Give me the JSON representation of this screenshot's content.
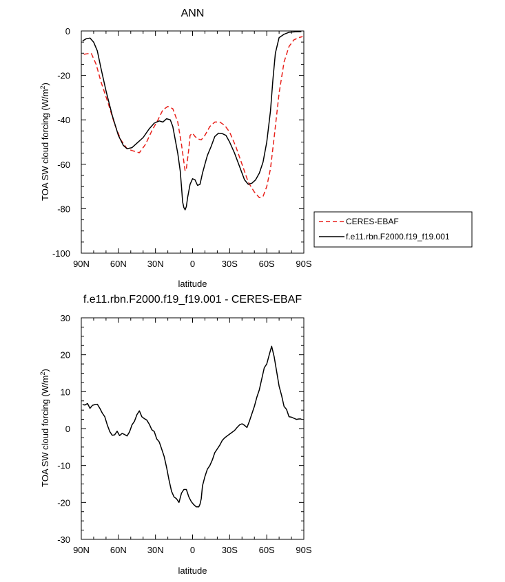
{
  "chart_data": [
    {
      "type": "line",
      "title": "ANN",
      "xlabel": "latitude",
      "ylabel_main": "TOA SW cloud forcing (W/m",
      "ylabel_sup": "2",
      "ylabel_end": ")",
      "xlim": [
        -90,
        90
      ],
      "ylim": [
        -100,
        0
      ],
      "xticks": [
        -90,
        -60,
        -30,
        0,
        30,
        60,
        90
      ],
      "xtick_labels": [
        "90N",
        "60N",
        "30N",
        "0",
        "30S",
        "60S",
        "90S"
      ],
      "yticks": [
        -100,
        -80,
        -60,
        -40,
        -20,
        0
      ],
      "ytick_labels": [
        "-100",
        "-80",
        "-60",
        "-40",
        "-20",
        "0"
      ],
      "legend_position": "right",
      "series": [
        {
          "name": "CERES-EBAF",
          "color": "#e8211b",
          "dash": "dashed",
          "points": [
            [
              -88,
              -10.5
            ],
            [
              -82,
              -10
            ],
            [
              -78,
              -15
            ],
            [
              -74,
              -23
            ],
            [
              -68,
              -33
            ],
            [
              -63,
              -42
            ],
            [
              -58,
              -49
            ],
            [
              -53,
              -53
            ],
            [
              -48,
              -54
            ],
            [
              -43,
              -54.8
            ],
            [
              -38,
              -51
            ],
            [
              -33,
              -45
            ],
            [
              -28,
              -40
            ],
            [
              -24,
              -35.5
            ],
            [
              -20,
              -34
            ],
            [
              -16,
              -35
            ],
            [
              -12,
              -41
            ],
            [
              -9,
              -51
            ],
            [
              -7,
              -59
            ],
            [
              -6,
              -63
            ],
            [
              -5,
              -62
            ],
            [
              -3,
              -53
            ],
            [
              -2,
              -47
            ],
            [
              0,
              -46
            ],
            [
              2,
              -47.5
            ],
            [
              4,
              -48.5
            ],
            [
              7,
              -49
            ],
            [
              10,
              -47
            ],
            [
              14,
              -43
            ],
            [
              18,
              -41
            ],
            [
              22,
              -41
            ],
            [
              26,
              -42.5
            ],
            [
              30,
              -45.5
            ],
            [
              35,
              -52
            ],
            [
              40,
              -60
            ],
            [
              45,
              -68
            ],
            [
              50,
              -72.5
            ],
            [
              54,
              -75
            ],
            [
              57,
              -74.5
            ],
            [
              60,
              -70
            ],
            [
              63,
              -62
            ],
            [
              66,
              -48
            ],
            [
              70,
              -28
            ],
            [
              74,
              -14
            ],
            [
              78,
              -7
            ],
            [
              82,
              -4
            ],
            [
              86,
              -3
            ],
            [
              89,
              -2.5
            ]
          ]
        },
        {
          "name": "f.e11.rbn.F2000.f19_f19.001",
          "color": "#000000",
          "dash": "solid",
          "points": [
            [
              -89,
              -4.5
            ],
            [
              -86,
              -3.5
            ],
            [
              -83,
              -3.2
            ],
            [
              -80,
              -5
            ],
            [
              -77,
              -9
            ],
            [
              -74,
              -17
            ],
            [
              -70,
              -27
            ],
            [
              -65,
              -38
            ],
            [
              -60,
              -47
            ],
            [
              -56,
              -51.5
            ],
            [
              -53,
              -53
            ],
            [
              -49,
              -52.5
            ],
            [
              -45,
              -50.5
            ],
            [
              -40,
              -48
            ],
            [
              -35,
              -44
            ],
            [
              -31,
              -41.5
            ],
            [
              -27,
              -40.5
            ],
            [
              -24,
              -41
            ],
            [
              -21,
              -39.5
            ],
            [
              -18,
              -40
            ],
            [
              -16,
              -43
            ],
            [
              -14,
              -49
            ],
            [
              -12,
              -55
            ],
            [
              -10,
              -63
            ],
            [
              -9,
              -70
            ],
            [
              -8,
              -77
            ],
            [
              -7,
              -79.5
            ],
            [
              -6,
              -80.5
            ],
            [
              -5,
              -79
            ],
            [
              -4,
              -75
            ],
            [
              -2,
              -69
            ],
            [
              0,
              -66.5
            ],
            [
              2,
              -67
            ],
            [
              4,
              -69.5
            ],
            [
              6,
              -69
            ],
            [
              8,
              -64
            ],
            [
              10,
              -60
            ],
            [
              12,
              -56
            ],
            [
              15,
              -52
            ],
            [
              18,
              -47.5
            ],
            [
              21,
              -46
            ],
            [
              24,
              -46.2
            ],
            [
              27,
              -47
            ],
            [
              30,
              -50
            ],
            [
              34,
              -55
            ],
            [
              38,
              -61
            ],
            [
              42,
              -67
            ],
            [
              45,
              -69
            ],
            [
              48,
              -68.5
            ],
            [
              51,
              -67
            ],
            [
              54,
              -64
            ],
            [
              57,
              -59
            ],
            [
              60,
              -50
            ],
            [
              63,
              -36
            ],
            [
              65,
              -22
            ],
            [
              67,
              -10
            ],
            [
              70,
              -3
            ],
            [
              74,
              -1.5
            ],
            [
              78,
              -0.6
            ],
            [
              83,
              -0.4
            ],
            [
              88,
              -0.3
            ]
          ]
        }
      ]
    },
    {
      "type": "line",
      "title": "f.e11.rbn.F2000.f19_f19.001 - CERES-EBAF",
      "xlabel": "latitude",
      "ylabel_main": "TOA SW cloud forcing (W/m",
      "ylabel_sup": "2",
      "ylabel_end": ")",
      "xlim": [
        -90,
        90
      ],
      "ylim": [
        -30,
        30
      ],
      "xticks": [
        -90,
        -60,
        -30,
        0,
        30,
        60,
        90
      ],
      "xtick_labels": [
        "90N",
        "60N",
        "30N",
        "0",
        "30S",
        "60S",
        "90S"
      ],
      "yticks": [
        -30,
        -20,
        -10,
        0,
        10,
        20,
        30
      ],
      "ytick_labels": [
        "-30",
        "-20",
        "-10",
        "0",
        "10",
        "20",
        "30"
      ],
      "series": [
        {
          "color": "#000000",
          "dash": "solid",
          "points": [
            [
              -89,
              6.5
            ],
            [
              -87,
              6.4
            ],
            [
              -85,
              6.8
            ],
            [
              -83,
              5.5
            ],
            [
              -81,
              6.3
            ],
            [
              -79,
              6.5
            ],
            [
              -77,
              6.6
            ],
            [
              -75,
              5.5
            ],
            [
              -73,
              4.2
            ],
            [
              -71,
              3.2
            ],
            [
              -69,
              1
            ],
            [
              -67,
              -0.8
            ],
            [
              -65,
              -1.8
            ],
            [
              -63,
              -1.7
            ],
            [
              -61,
              -0.7
            ],
            [
              -59,
              -1.9
            ],
            [
              -57,
              -1.3
            ],
            [
              -55,
              -1.6
            ],
            [
              -53,
              -2
            ],
            [
              -51,
              -0.9
            ],
            [
              -49,
              1
            ],
            [
              -47,
              2
            ],
            [
              -45,
              3.8
            ],
            [
              -43,
              4.8
            ],
            [
              -41,
              3.2
            ],
            [
              -39,
              2.7
            ],
            [
              -37,
              2.3
            ],
            [
              -35,
              1.2
            ],
            [
              -33,
              -0.3
            ],
            [
              -31,
              -0.8
            ],
            [
              -29,
              -2.8
            ],
            [
              -27,
              -3.6
            ],
            [
              -25,
              -5.5
            ],
            [
              -23,
              -7.5
            ],
            [
              -21,
              -10.5
            ],
            [
              -19,
              -14
            ],
            [
              -17,
              -17
            ],
            [
              -15,
              -18.5
            ],
            [
              -13,
              -19
            ],
            [
              -11,
              -20
            ],
            [
              -9,
              -17.5
            ],
            [
              -7,
              -16.5
            ],
            [
              -5,
              -16.5
            ],
            [
              -3,
              -18.5
            ],
            [
              -1,
              -19.8
            ],
            [
              1,
              -20.6
            ],
            [
              3,
              -21.2
            ],
            [
              5,
              -21.2
            ],
            [
              6,
              -20.5
            ],
            [
              7,
              -19
            ],
            [
              8,
              -15.5
            ],
            [
              10,
              -13
            ],
            [
              12,
              -11
            ],
            [
              14,
              -10
            ],
            [
              16,
              -8.5
            ],
            [
              18,
              -6.5
            ],
            [
              20,
              -5.5
            ],
            [
              22,
              -4.5
            ],
            [
              24,
              -3.2
            ],
            [
              26,
              -2.5
            ],
            [
              28,
              -2
            ],
            [
              30,
              -1.5
            ],
            [
              32,
              -1
            ],
            [
              34,
              -0.5
            ],
            [
              36,
              0.3
            ],
            [
              38,
              1
            ],
            [
              40,
              1.3
            ],
            [
              42,
              0.9
            ],
            [
              44,
              0.3
            ],
            [
              46,
              2
            ],
            [
              48,
              4
            ],
            [
              50,
              6
            ],
            [
              52,
              8.5
            ],
            [
              54,
              10.5
            ],
            [
              56,
              13.5
            ],
            [
              58,
              16.5
            ],
            [
              60,
              17.5
            ],
            [
              62,
              20
            ],
            [
              64,
              22.3
            ],
            [
              66,
              19.5
            ],
            [
              68,
              15.5
            ],
            [
              70,
              11.5
            ],
            [
              72,
              9
            ],
            [
              74,
              6
            ],
            [
              76,
              5.2
            ],
            [
              78,
              3.2
            ],
            [
              80,
              3.1
            ],
            [
              82,
              2.8
            ],
            [
              84,
              2.5
            ],
            [
              86,
              2.6
            ],
            [
              88,
              2.6
            ]
          ]
        }
      ]
    }
  ]
}
